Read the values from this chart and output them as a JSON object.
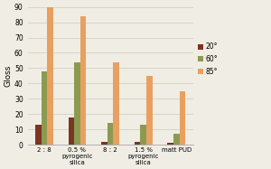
{
  "categories": [
    "2 : 8",
    "0.5 %\npyrogenic\nsilica",
    "8 : 2",
    "1.5 %\npyrogenic\nsilica",
    "matt PUD"
  ],
  "series": {
    "20°": [
      13,
      18,
      2,
      2,
      1
    ],
    "60°": [
      48,
      54,
      14,
      13,
      7
    ],
    "85°": [
      90,
      84,
      54,
      45,
      35
    ]
  },
  "colors": {
    "20°": "#7B3520",
    "60°": "#8B9A50",
    "85°": "#E8A060"
  },
  "ylabel": "Gloss",
  "ylim": [
    0,
    90
  ],
  "yticks": [
    0,
    10,
    20,
    30,
    40,
    50,
    60,
    70,
    80,
    90
  ],
  "legend_labels": [
    "20°",
    "60°",
    "85°"
  ],
  "bar_width": 0.18,
  "background_color": "#f0ede5",
  "grid_color": "#ccccbb"
}
